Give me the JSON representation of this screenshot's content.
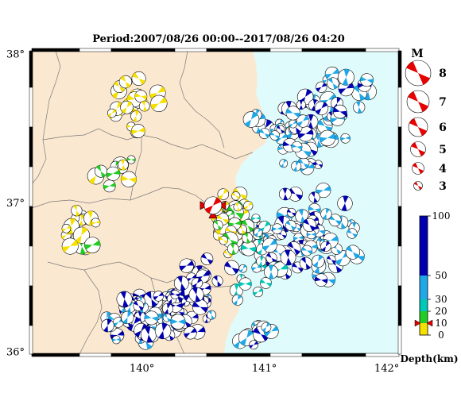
{
  "title": "Period:2007/08/26 00:00--2017/08/26 04:20",
  "axes": {
    "lon_ticks": [
      {
        "value": 140,
        "label": "140°"
      },
      {
        "value": 141,
        "label": "141°"
      },
      {
        "value": 142,
        "label": "142°"
      }
    ],
    "lat_ticks": [
      {
        "value": 38,
        "label": "38°"
      },
      {
        "value": 37,
        "label": "37°"
      },
      {
        "value": 36,
        "label": "36°"
      }
    ],
    "lon_range": [
      139.1,
      142.1
    ],
    "lat_range": [
      35.98,
      38.02
    ]
  },
  "colors": {
    "land": "#fbe8d0",
    "sea": "#e0fbfb",
    "depth_0_10": "#f6e000",
    "depth_10_20": "#22cc22",
    "depth_20_30": "#00c8b8",
    "depth_30_50": "#1ea8e8",
    "depth_50_100": "#0000b0",
    "mainshock": "#e60000"
  },
  "magnitude_legend": {
    "title": "M",
    "entries": [
      {
        "label": "8"
      },
      {
        "label": "7"
      },
      {
        "label": "6"
      },
      {
        "label": "5"
      },
      {
        "label": "4"
      },
      {
        "label": "3"
      }
    ]
  },
  "depth_legend": {
    "title": "Depth(km)",
    "ticks": [
      {
        "value": 100,
        "label": "100"
      },
      {
        "value": 50,
        "label": "50"
      },
      {
        "value": 30,
        "label": "30"
      },
      {
        "value": 20,
        "label": "20"
      },
      {
        "value": 10,
        "label": "10"
      },
      {
        "value": 0,
        "label": "0"
      }
    ],
    "marker_depth": 10
  },
  "mainshock": {
    "lon": 140.58,
    "lat": 36.98,
    "depth": 10,
    "icon": "bowtie-marker-icon"
  }
}
